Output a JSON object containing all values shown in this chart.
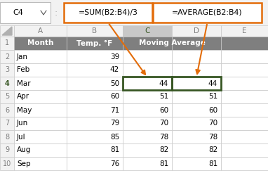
{
  "formula_bar_left": "=SUM(B2:B4)/3",
  "formula_bar_right": "=AVERAGE(B2:B4)",
  "cell_ref": "C4",
  "col_headers": [
    "A",
    "B",
    "C",
    "D",
    "E"
  ],
  "months": [
    "Jan",
    "Feb",
    "Mar",
    "Apr",
    "May",
    "Jun",
    "Jul",
    "Aug",
    "Sep"
  ],
  "temps": [
    "39",
    "42",
    "50",
    "60",
    "71",
    "79",
    "85",
    "81",
    "76"
  ],
  "c_vals": [
    "",
    "",
    "44",
    "51",
    "60",
    "70",
    "78",
    "82",
    "81"
  ],
  "d_vals": [
    "",
    "",
    "44",
    "51",
    "60",
    "70",
    "78",
    "82",
    "81"
  ],
  "header_bg": "#7f7f7f",
  "header_fg": "#ffffff",
  "col_c_header_bg": "#c8c8c8",
  "col_c_header_fg": "#375623",
  "selected_row_num_color": "#375623",
  "normal_bg": "#ffffff",
  "grid_color": "#c8c8c8",
  "formula_box_color": "#e36c09",
  "arrow_color": "#e36c09",
  "selected_cell_border": "#375623",
  "row_num_bg": "#f2f2f2",
  "row_num_fg": "#7f7f7f",
  "col_letter_bg": "#f2f2f2",
  "col_letter_fg": "#7f7f7f",
  "col_c_letter_fg": "#375623",
  "col_c_letter_bg": "#c8c8c8",
  "corner_bg": "#f2f2f2",
  "formula_bar_bg": "#ffffff"
}
